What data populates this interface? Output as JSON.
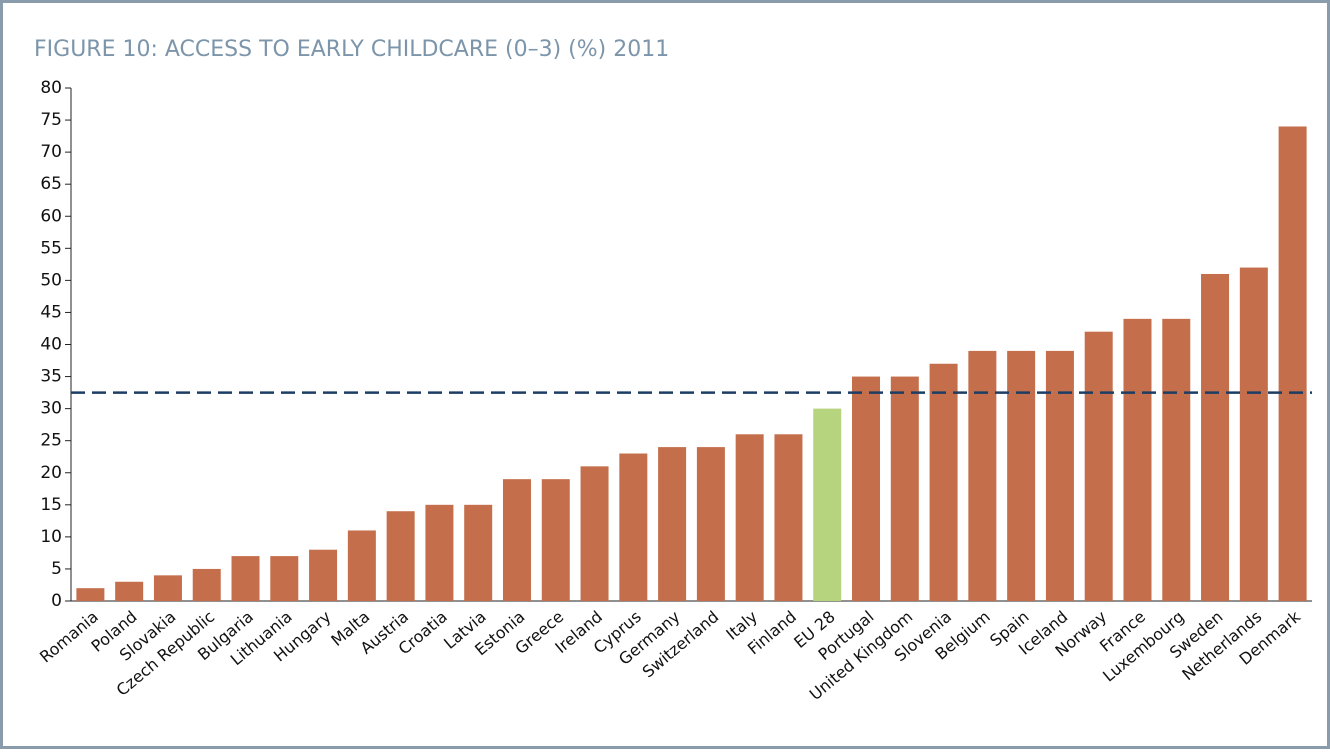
{
  "chart_data": {
    "type": "bar",
    "title": "FIGURE 10: ACCESS TO EARLY CHILDCARE (0–3) (%) 2011",
    "categories": [
      "Romania",
      "Poland",
      "Slovakia",
      "Czech Republic",
      "Bulgaria",
      "Lithuania",
      "Hungary",
      "Malta",
      "Austria",
      "Croatia",
      "Latvia",
      "Estonia",
      "Greece",
      "Ireland",
      "Cyprus",
      "Germany",
      "Switzerland",
      "Italy",
      "Finland",
      "EU 28",
      "Portugal",
      "United Kingdom",
      "Slovenia",
      "Belgium",
      "Spain",
      "Iceland",
      "Norway",
      "France",
      "Luxembourg",
      "Sweden",
      "Netherlands",
      "Denmark"
    ],
    "values": [
      2,
      3,
      4,
      5,
      7,
      7,
      8,
      11,
      14,
      15,
      15,
      19,
      19,
      21,
      23,
      24,
      24,
      26,
      26,
      30,
      35,
      35,
      37,
      39,
      39,
      39,
      42,
      44,
      44,
      51,
      52,
      74
    ],
    "colors": [
      "#c46e4b",
      "#c46e4b",
      "#c46e4b",
      "#c46e4b",
      "#c46e4b",
      "#c46e4b",
      "#c46e4b",
      "#c46e4b",
      "#c46e4b",
      "#c46e4b",
      "#c46e4b",
      "#c46e4b",
      "#c46e4b",
      "#c46e4b",
      "#c46e4b",
      "#c46e4b",
      "#c46e4b",
      "#c46e4b",
      "#c46e4b",
      "#b6d47e",
      "#c46e4b",
      "#c46e4b",
      "#c46e4b",
      "#c46e4b",
      "#c46e4b",
      "#c46e4b",
      "#c46e4b",
      "#c46e4b",
      "#c46e4b",
      "#c46e4b",
      "#c46e4b",
      "#c46e4b"
    ],
    "reference_line": 32.5,
    "reference_color": "#1c3d64",
    "ylim": [
      0,
      80
    ],
    "yticks": [
      0,
      5,
      10,
      15,
      20,
      25,
      30,
      35,
      40,
      45,
      50,
      55,
      60,
      65,
      70,
      75,
      80
    ],
    "grid": false
  }
}
